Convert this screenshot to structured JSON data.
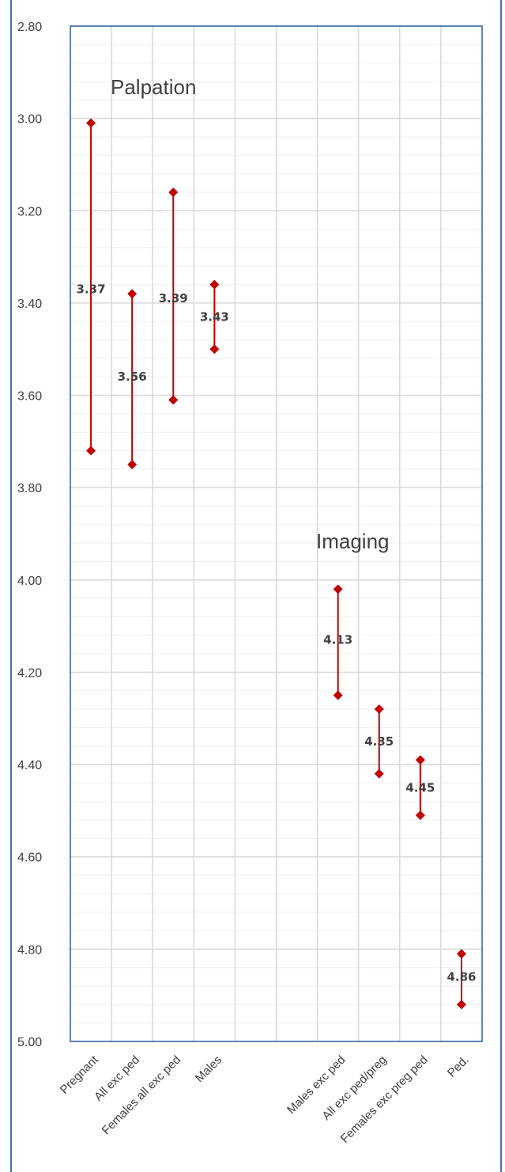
{
  "chart_data": {
    "type": "range",
    "y_reversed": true,
    "ylim": [
      2.8,
      5.0
    ],
    "y_ticks": [
      "2.80",
      "3.00",
      "3.20",
      "3.40",
      "3.60",
      "3.80",
      "4.00",
      "4.20",
      "4.40",
      "4.60",
      "4.80",
      "5.00"
    ],
    "categories": [
      "Pregnant",
      "All exc ped",
      "Females all exc ped",
      "Males",
      "",
      "",
      "Males exc ped",
      "All exc ped/preg",
      "Females exc preg ped",
      "Ped."
    ],
    "series": [
      {
        "category": "Pregnant",
        "low": 3.01,
        "high": 3.72,
        "label": "3.37"
      },
      {
        "category": "All exc ped",
        "low": 3.38,
        "high": 3.75,
        "label": "3.56"
      },
      {
        "category": "Females all exc ped",
        "low": 3.16,
        "high": 3.61,
        "label": "3.39"
      },
      {
        "category": "Males",
        "low": 3.36,
        "high": 3.5,
        "label": "3.43"
      },
      {
        "category": "Males exc ped",
        "low": 4.02,
        "high": 4.25,
        "label": "4.13"
      },
      {
        "category": "All exc ped/preg",
        "low": 4.28,
        "high": 4.42,
        "label": "4.35"
      },
      {
        "category": "Females exc preg ped",
        "low": 4.39,
        "high": 4.51,
        "label": "4.45"
      },
      {
        "category": "Ped.",
        "low": 4.81,
        "high": 4.92,
        "label": "4.86"
      }
    ],
    "annotations": [
      "Palpation",
      "Imaging"
    ],
    "colors": {
      "marker": "#c00000",
      "line": "#c00000",
      "plot_border": "#2e5e9e",
      "grid": "#d9d9d9",
      "minor_grid": "#efefef",
      "frame": "#4472c4"
    },
    "grid": true
  }
}
